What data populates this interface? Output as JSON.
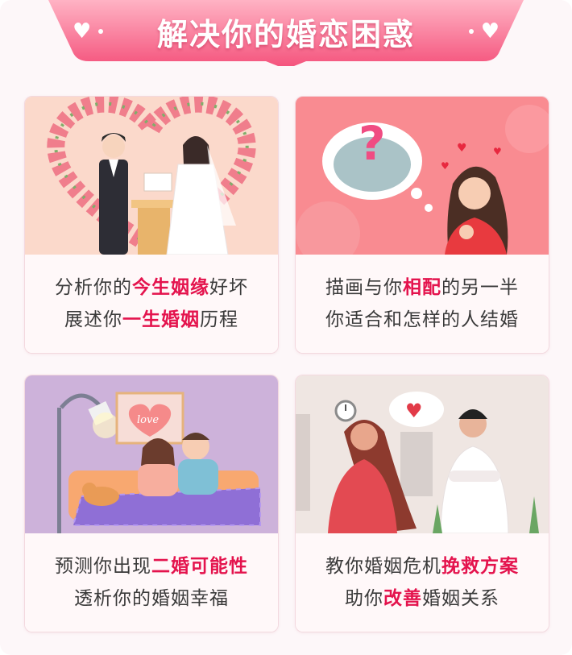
{
  "header": {
    "title": "解决你的婚恋困惑"
  },
  "colors": {
    "accent": "#e4134d",
    "ribbon": "#f45c7f",
    "ribbon_light": "#ff9db3"
  },
  "cards": [
    {
      "icon": "wedding-couple-illustration",
      "line1": {
        "pre": "分析你的",
        "hl": "今生姻缘",
        "post": "好坏"
      },
      "line2": {
        "pre": "展述你",
        "hl": "一生婚姻",
        "post": "历程"
      }
    },
    {
      "icon": "thinking-woman-illustration",
      "line1": {
        "pre": "描画与你",
        "hl": "相配",
        "post": "的另一半"
      },
      "line2": {
        "pre": "你适合和怎样的人结婚",
        "hl": "",
        "post": ""
      }
    },
    {
      "icon": "couple-in-bed-illustration",
      "poster_text": "love",
      "line1": {
        "pre": "预测你出现",
        "hl": "二婚可能性",
        "post": ""
      },
      "line2": {
        "pre": "透析你的婚姻幸福",
        "hl": "",
        "post": ""
      }
    },
    {
      "icon": "arguing-couple-illustration",
      "line1": {
        "pre": "教你婚姻危机",
        "hl": "挽救方案",
        "post": ""
      },
      "line2": {
        "pre": "助你",
        "hl": "改善",
        "post": "婚姻关系"
      }
    }
  ]
}
